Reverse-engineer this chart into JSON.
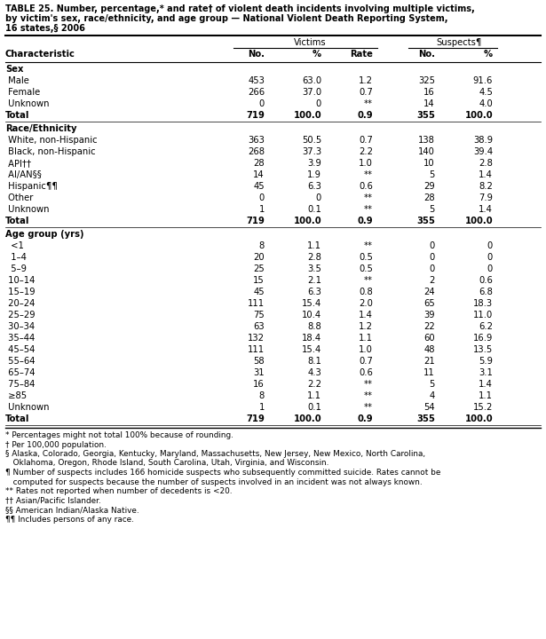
{
  "title_line1": "TABLE 25. Number, percentage,* and rate† of violent death incidents involving multiple victims,",
  "title_line2": "by victim's sex, race/ethnicity, and age group — National Violent Death Reporting System,",
  "title_line3": "16 states,§ 2006",
  "sections": [
    {
      "section_label": "Sex",
      "rows": [
        {
          "label": " Male",
          "bold": false,
          "vals": [
            "453",
            "63.0",
            "1.2",
            "325",
            "91.6"
          ]
        },
        {
          "label": " Female",
          "bold": false,
          "vals": [
            "266",
            "37.0",
            "0.7",
            "16",
            "4.5"
          ]
        },
        {
          "label": " Unknown",
          "bold": false,
          "vals": [
            "0",
            "0",
            "**",
            "14",
            "4.0"
          ]
        },
        {
          "label": "Total",
          "bold": true,
          "vals": [
            "719",
            "100.0",
            "0.9",
            "355",
            "100.0"
          ]
        }
      ]
    },
    {
      "section_label": "Race/Ethnicity",
      "rows": [
        {
          "label": " White, non-Hispanic",
          "bold": false,
          "vals": [
            "363",
            "50.5",
            "0.7",
            "138",
            "38.9"
          ]
        },
        {
          "label": " Black, non-Hispanic",
          "bold": false,
          "vals": [
            "268",
            "37.3",
            "2.2",
            "140",
            "39.4"
          ]
        },
        {
          "label": " API††",
          "bold": false,
          "vals": [
            "28",
            "3.9",
            "1.0",
            "10",
            "2.8"
          ]
        },
        {
          "label": " AI/AN§§",
          "bold": false,
          "vals": [
            "14",
            "1.9",
            "**",
            "5",
            "1.4"
          ]
        },
        {
          "label": " Hispanic¶¶",
          "bold": false,
          "vals": [
            "45",
            "6.3",
            "0.6",
            "29",
            "8.2"
          ]
        },
        {
          "label": " Other",
          "bold": false,
          "vals": [
            "0",
            "0",
            "**",
            "28",
            "7.9"
          ]
        },
        {
          "label": " Unknown",
          "bold": false,
          "vals": [
            "1",
            "0.1",
            "**",
            "5",
            "1.4"
          ]
        },
        {
          "label": "Total",
          "bold": true,
          "vals": [
            "719",
            "100.0",
            "0.9",
            "355",
            "100.0"
          ]
        }
      ]
    },
    {
      "section_label": "Age group (yrs)",
      "rows": [
        {
          "label": "  <1",
          "bold": false,
          "vals": [
            "8",
            "1.1",
            "**",
            "0",
            "0"
          ]
        },
        {
          "label": "  1–4",
          "bold": false,
          "vals": [
            "20",
            "2.8",
            "0.5",
            "0",
            "0"
          ]
        },
        {
          "label": "  5–9",
          "bold": false,
          "vals": [
            "25",
            "3.5",
            "0.5",
            "0",
            "0"
          ]
        },
        {
          "label": " 10–14",
          "bold": false,
          "vals": [
            "15",
            "2.1",
            "**",
            "2",
            "0.6"
          ]
        },
        {
          "label": " 15–19",
          "bold": false,
          "vals": [
            "45",
            "6.3",
            "0.8",
            "24",
            "6.8"
          ]
        },
        {
          "label": " 20–24",
          "bold": false,
          "vals": [
            "111",
            "15.4",
            "2.0",
            "65",
            "18.3"
          ]
        },
        {
          "label": " 25–29",
          "bold": false,
          "vals": [
            "75",
            "10.4",
            "1.4",
            "39",
            "11.0"
          ]
        },
        {
          "label": " 30–34",
          "bold": false,
          "vals": [
            "63",
            "8.8",
            "1.2",
            "22",
            "6.2"
          ]
        },
        {
          "label": " 35–44",
          "bold": false,
          "vals": [
            "132",
            "18.4",
            "1.1",
            "60",
            "16.9"
          ]
        },
        {
          "label": " 45–54",
          "bold": false,
          "vals": [
            "111",
            "15.4",
            "1.0",
            "48",
            "13.5"
          ]
        },
        {
          "label": " 55–64",
          "bold": false,
          "vals": [
            "58",
            "8.1",
            "0.7",
            "21",
            "5.9"
          ]
        },
        {
          "label": " 65–74",
          "bold": false,
          "vals": [
            "31",
            "4.3",
            "0.6",
            "11",
            "3.1"
          ]
        },
        {
          "label": " 75–84",
          "bold": false,
          "vals": [
            "16",
            "2.2",
            "**",
            "5",
            "1.4"
          ]
        },
        {
          "label": " ≥85",
          "bold": false,
          "vals": [
            "8",
            "1.1",
            "**",
            "4",
            "1.1"
          ]
        },
        {
          "label": " Unknown",
          "bold": false,
          "vals": [
            "1",
            "0.1",
            "**",
            "54",
            "15.2"
          ]
        },
        {
          "label": "Total",
          "bold": true,
          "vals": [
            "719",
            "100.0",
            "0.9",
            "355",
            "100.0"
          ]
        }
      ]
    }
  ],
  "footnotes": [
    [
      "* Percentages might not total 100% because of rounding.",
      false
    ],
    [
      "† Per 100,000 population.",
      false
    ],
    [
      "§ Alaska, Colorado, Georgia, Kentucky, Maryland, Massachusetts, New Jersey, New Mexico, North Carolina,",
      false
    ],
    [
      "   Oklahoma, Oregon, Rhode Island, South Carolina, Utah, Virginia, and Wisconsin.",
      false
    ],
    [
      "¶ Number of suspects includes 166 homicide suspects who subsequently committed suicide. Rates cannot be",
      false
    ],
    [
      "   computed for suspects because the number of suspects involved in an incident was not always known.",
      false
    ],
    [
      "** Rates not reported when number of decedents is <20.",
      false
    ],
    [
      "†† Asian/Pacific Islander.",
      false
    ],
    [
      "§§ American Indian/Alaska Native.",
      false
    ],
    [
      "¶¶ Includes persons of any race.",
      false
    ]
  ]
}
